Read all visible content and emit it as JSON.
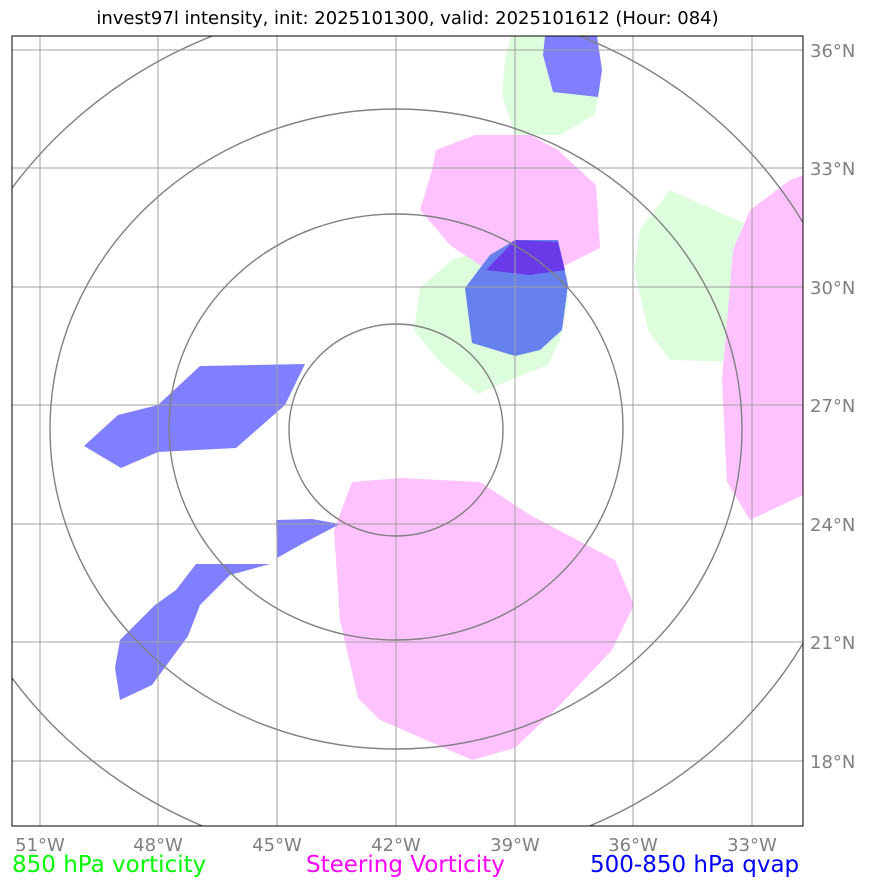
{
  "title": "invest97l intensity, init: 2025101300, valid: 2025101612 (Hour: 084)",
  "axes": {
    "lon_labels": [
      "51°W",
      "48°W",
      "45°W",
      "42°W",
      "39°W",
      "36°W",
      "33°W"
    ],
    "lat_labels": [
      "36°N",
      "33°N",
      "30°N",
      "27°N",
      "24°N",
      "21°N",
      "18°N"
    ]
  },
  "legend": {
    "vorticity_850": {
      "label": "850 hPa vorticity",
      "color": "#00ff00"
    },
    "steering": {
      "label": "Steering Vorticity",
      "color": "#ff00ff"
    },
    "qvap": {
      "label": "500-850 hPa qvap",
      "color": "#0000ff"
    }
  },
  "colors": {
    "vort_fill": "#ddfedd",
    "steer_fill": "#ffbfff",
    "qvap_fill": "#7f7fff",
    "grid": "#a0a0a0",
    "rings": "#808080"
  }
}
